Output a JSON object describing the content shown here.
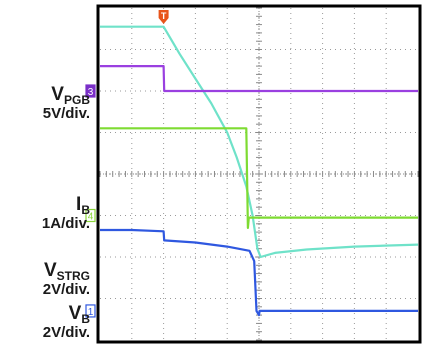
{
  "chart_data": {
    "type": "line",
    "title": "",
    "xlabel": "",
    "ylabel": "",
    "xlim": [
      0,
      10
    ],
    "ylim": [
      -4,
      4
    ],
    "grid": true,
    "trigger_marker": {
      "label": "T",
      "x": 2.0,
      "color": "#e8541a"
    },
    "channel_markers": [
      {
        "label": "3",
        "y": 2.0,
        "color": "#7a2fc8"
      },
      {
        "label": "4",
        "y": -1.0,
        "color": "#8ad63a"
      },
      {
        "label": "1",
        "y": -3.3,
        "color": "#2f58e0"
      }
    ],
    "channel_labels": [
      {
        "id": "vpgb",
        "name": "V",
        "sub": "PGB",
        "scale": "5V/div."
      },
      {
        "id": "ib",
        "name": "I",
        "sub": "B",
        "scale": "1A/div."
      },
      {
        "id": "vstrg",
        "name": "V",
        "sub": "STRG",
        "scale": "2V/div."
      },
      {
        "id": "vb",
        "name": "V",
        "sub": "B",
        "scale": "2V/div."
      }
    ],
    "series": [
      {
        "color": "#6fe2c9",
        "x": [
          0,
          2.0,
          2.5,
          3.0,
          3.5,
          4.0,
          4.3,
          4.6,
          4.8,
          4.95,
          5.05,
          5.5,
          6.5,
          8.0,
          10.0
        ],
        "y": [
          3.55,
          3.55,
          2.9,
          2.3,
          1.7,
          1.0,
          0.4,
          -0.3,
          -1.0,
          -1.8,
          -2.0,
          -1.9,
          -1.82,
          -1.75,
          -1.7
        ]
      },
      {
        "color": "#9a40e0",
        "x": [
          0,
          2.0,
          2.02,
          10.0
        ],
        "y": [
          2.6,
          2.6,
          2.0,
          2.0
        ]
      },
      {
        "color": "#7edb32",
        "x": [
          0,
          4.6,
          4.65,
          4.68,
          10.0
        ],
        "y": [
          1.1,
          1.1,
          -1.3,
          -1.05,
          -1.05
        ]
      },
      {
        "color": "#2f58e0",
        "x": [
          0,
          1.0,
          2.0,
          2.02,
          3.0,
          4.0,
          4.7,
          4.85,
          4.92,
          5.0,
          5.02,
          10.0
        ],
        "y": [
          -1.35,
          -1.35,
          -1.38,
          -1.6,
          -1.65,
          -1.75,
          -1.85,
          -2.1,
          -3.3,
          -3.4,
          -3.3,
          -3.3
        ]
      }
    ]
  }
}
